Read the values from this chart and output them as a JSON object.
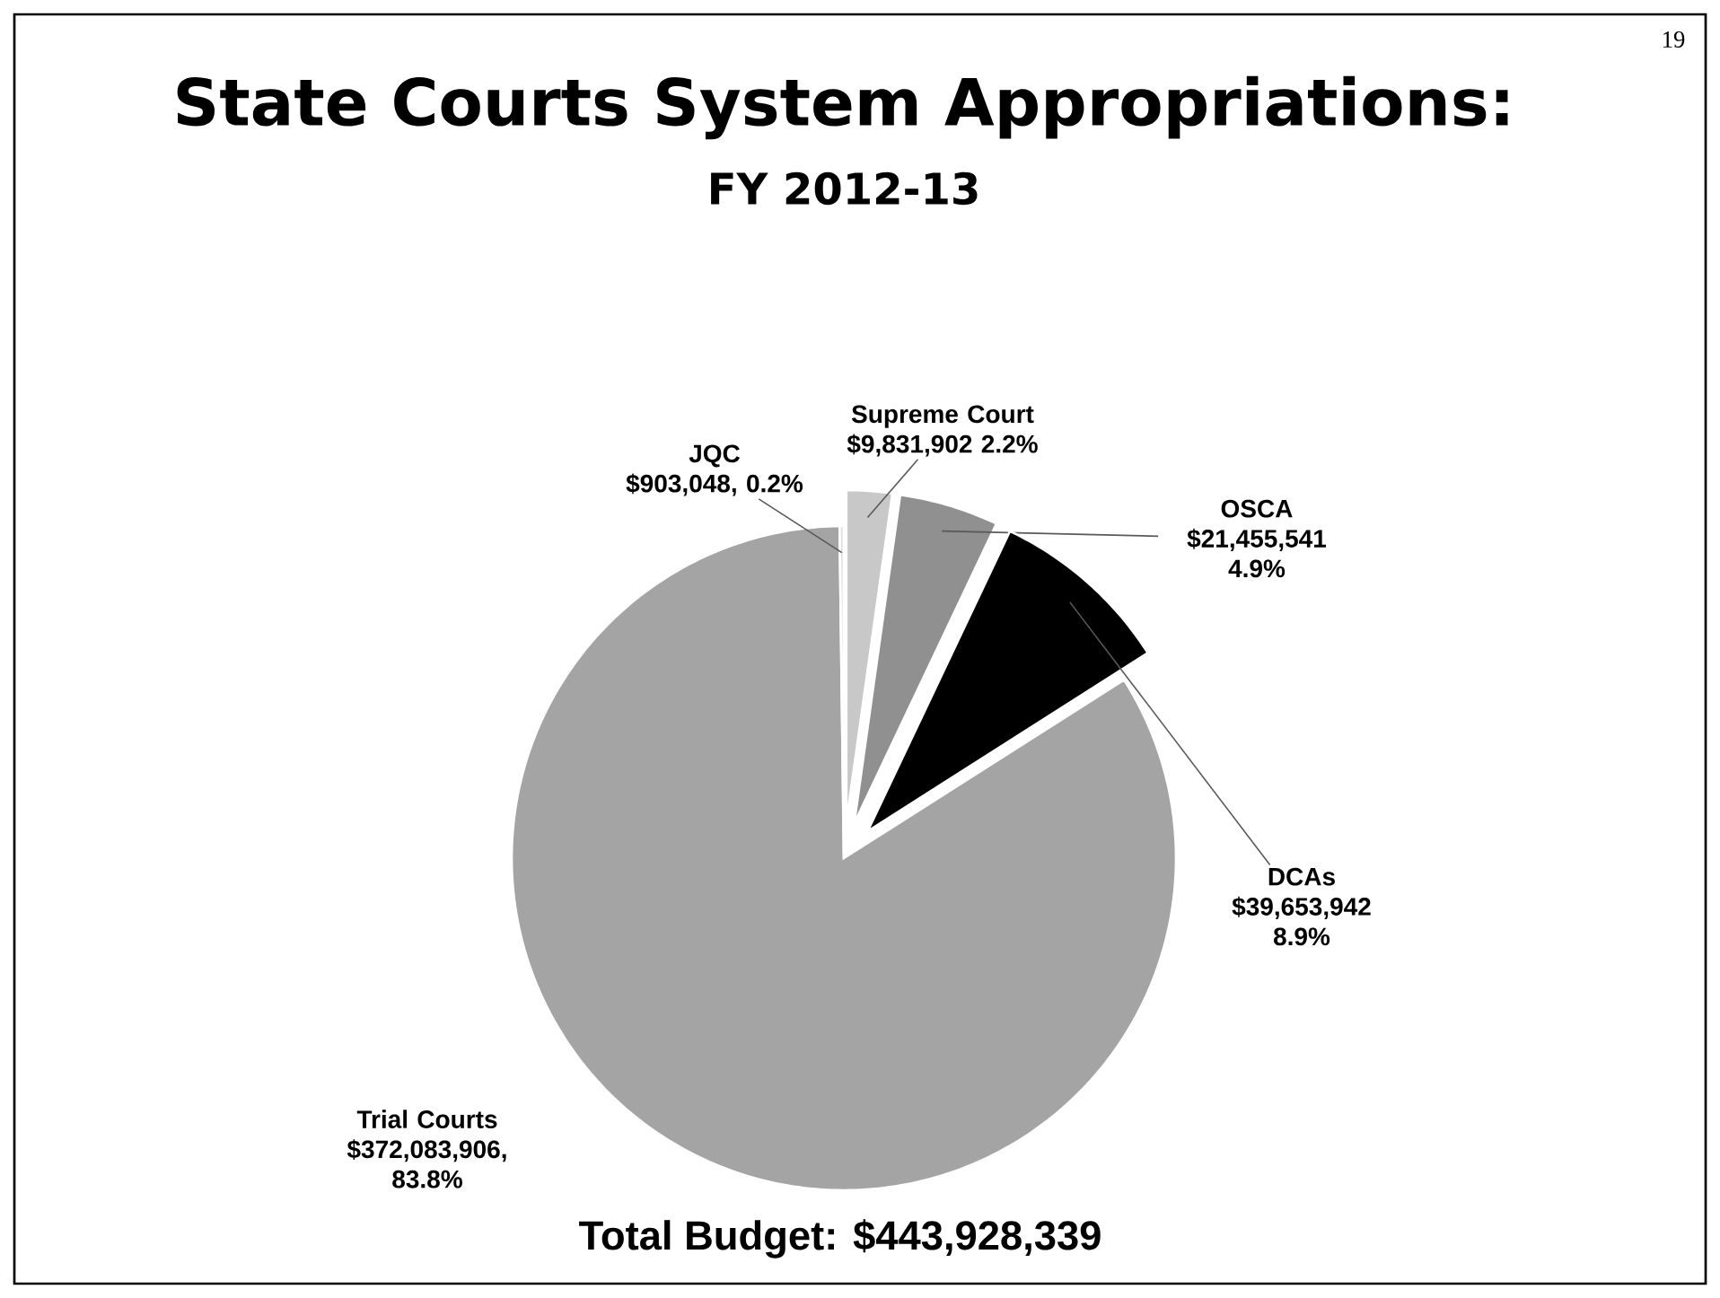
{
  "chart_data": {
    "type": "pie",
    "title": "State Courts System Appropriations:",
    "subtitle": "FY 2012-13",
    "categories": [
      "Supreme Court",
      "OSCA",
      "DCAs",
      "Trial Courts",
      "JQC"
    ],
    "values": [
      9831902,
      21455541,
      39653942,
      372083906,
      903048
    ],
    "value_labels": [
      "$9,831,902 2.2%",
      "$21,455,541 4.9%",
      "$39,653,942 8.9%",
      "$372,083,906, 83.8%",
      "$903,048, 0.2%"
    ],
    "colors": [
      "#c8c8c8",
      "#909090",
      "#000000",
      "#a4a4a4",
      "#e0e0e0"
    ],
    "annotations": [
      "19",
      "Total Budget: $443,928,339"
    ]
  }
}
